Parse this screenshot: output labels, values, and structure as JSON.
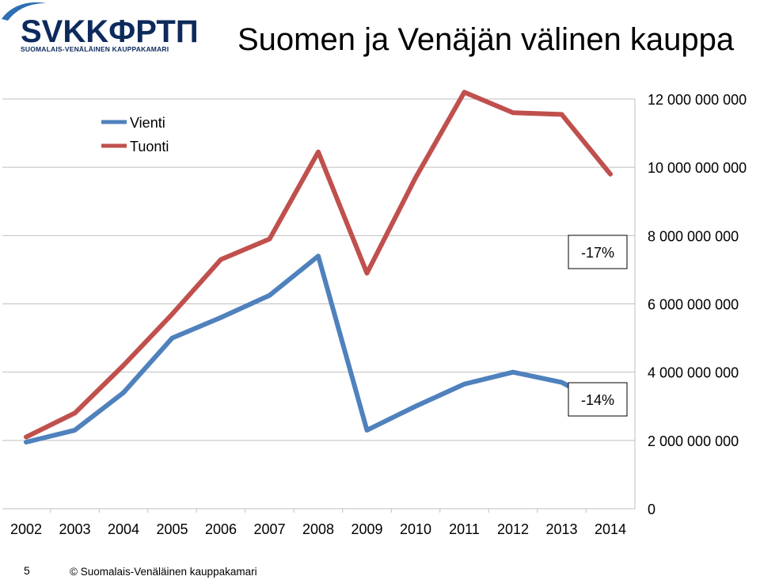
{
  "header": {
    "logo_text": "SVKKФРТП",
    "logo_subtitle": "SUOMALAIS-VENÄLÄINEN KAUPPAKAMARI",
    "title": "Suomen ja Venäjän välinen kauppa"
  },
  "chart_data": {
    "type": "line",
    "title": "",
    "xlabel": "",
    "ylabel": "",
    "categories": [
      "2002",
      "2003",
      "2004",
      "2005",
      "2006",
      "2007",
      "2008",
      "2009",
      "2010",
      "2011",
      "2012",
      "2013",
      "2014"
    ],
    "series": [
      {
        "name": "Vienti",
        "color": "#4f81bd",
        "values": [
          1950000000,
          2300000000,
          3400000000,
          5000000000,
          5600000000,
          6250000000,
          7400000000,
          2300000000,
          3000000000,
          3650000000,
          4000000000,
          3700000000,
          2950000000
        ]
      },
      {
        "name": "Tuonti",
        "color": "#c0504d",
        "values": [
          2100000000,
          2800000000,
          4200000000,
          5700000000,
          7300000000,
          7900000000,
          10450000000,
          6900000000,
          9700000000,
          12200000000,
          11600000000,
          11550000000,
          9800000000
        ]
      }
    ],
    "yaxis_side": "right",
    "ylim": [
      0,
      12000000000
    ],
    "ytick_labels": [
      "0",
      "2 000 000 000",
      "4 000 000 000",
      "6 000 000 000",
      "8 000 000 000",
      "10 000 000 000",
      "12 000 000 000"
    ],
    "grid": true,
    "legend_position": "top-left",
    "annotations": [
      {
        "text": "-17%",
        "series": "Tuonti"
      },
      {
        "text": "-14%",
        "series": "Vienti"
      }
    ]
  },
  "footer": {
    "page_number": "5",
    "copyright": "© Suomalais-Venäläinen kauppakamari"
  }
}
